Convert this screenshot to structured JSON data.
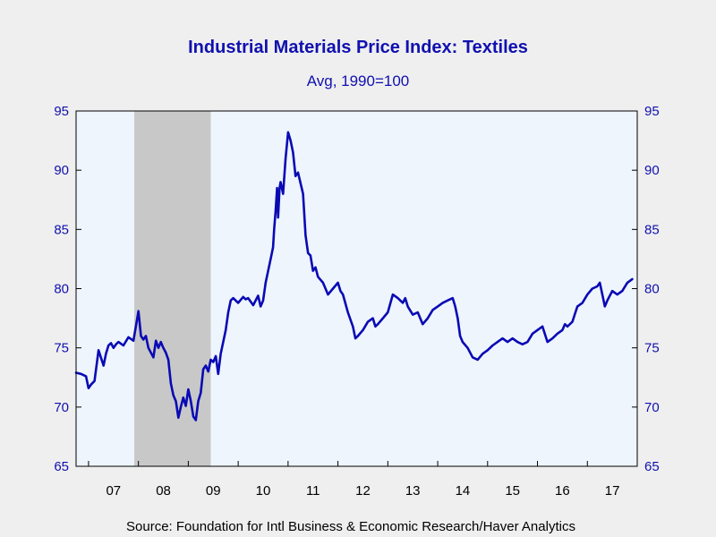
{
  "chart_data": {
    "type": "line",
    "title": "Industrial Materials Price Index: Textiles",
    "subtitle": "Avg, 1990=100",
    "source": "Source:  Foundation for Intl Business & Economic Research/Haver Analytics",
    "x_tick_labels": [
      "07",
      "08",
      "09",
      "10",
      "11",
      "12",
      "13",
      "14",
      "15",
      "16",
      "17"
    ],
    "y_tick_labels": [
      "65",
      "70",
      "75",
      "80",
      "85",
      "90",
      "95"
    ],
    "ylim": [
      65,
      95
    ],
    "xlim": [
      2006.75,
      2018.0
    ],
    "grid": false,
    "recession_shading": [
      2007.917,
      2009.45
    ],
    "colors": {
      "line": "#0a0ab4",
      "plot_bg": "#eef5fd",
      "recession": "#c8c8c8",
      "title": "#1010b0",
      "page_bg": "#efefef"
    },
    "series": [
      {
        "x": [
          2006.75,
          2006.85,
          2006.95,
          2007.0,
          2007.05,
          2007.12,
          2007.2,
          2007.3,
          2007.35,
          2007.4,
          2007.45,
          2007.5,
          2007.55,
          2007.6,
          2007.7,
          2007.8,
          2007.9,
          2008.0,
          2008.05,
          2008.1,
          2008.15,
          2008.2,
          2008.3,
          2008.35,
          2008.4,
          2008.45,
          2008.5,
          2008.55,
          2008.6,
          2008.65,
          2008.7,
          2008.75,
          2008.8,
          2008.85,
          2008.9,
          2008.95,
          2009.0,
          2009.05,
          2009.1,
          2009.15,
          2009.2,
          2009.25,
          2009.3,
          2009.35,
          2009.4,
          2009.45,
          2009.5,
          2009.55,
          2009.6,
          2009.65,
          2009.7,
          2009.75,
          2009.8,
          2009.85,
          2009.9,
          2010.0,
          2010.1,
          2010.15,
          2010.2,
          2010.3,
          2010.4,
          2010.45,
          2010.5,
          2010.55,
          2010.6,
          2010.65,
          2010.7,
          2010.72,
          2010.75,
          2010.78,
          2010.8,
          2010.83,
          2010.85,
          2010.9,
          2010.95,
          2011.0,
          2011.05,
          2011.1,
          2011.15,
          2011.2,
          2011.3,
          2011.35,
          2011.4,
          2011.45,
          2011.5,
          2011.55,
          2011.6,
          2011.7,
          2011.8,
          2011.9,
          2012.0,
          2012.05,
          2012.1,
          2012.2,
          2012.3,
          2012.35,
          2012.4,
          2012.5,
          2012.6,
          2012.7,
          2012.75,
          2012.8,
          2012.9,
          2013.0,
          2013.1,
          2013.2,
          2013.3,
          2013.35,
          2013.4,
          2013.5,
          2013.6,
          2013.7,
          2013.8,
          2013.9,
          2014.0,
          2014.1,
          2014.2,
          2014.3,
          2014.35,
          2014.4,
          2014.45,
          2014.5,
          2014.6,
          2014.7,
          2014.8,
          2014.9,
          2015.0,
          2015.1,
          2015.2,
          2015.3,
          2015.4,
          2015.5,
          2015.6,
          2015.7,
          2015.8,
          2015.9,
          2016.0,
          2016.1,
          2016.2,
          2016.3,
          2016.4,
          2016.5,
          2016.55,
          2016.6,
          2016.7,
          2016.8,
          2016.9,
          2017.0,
          2017.1,
          2017.2,
          2017.25,
          2017.3,
          2017.35,
          2017.4,
          2017.5,
          2017.6,
          2017.7,
          2017.8,
          2017.9
        ],
        "values": [
          72.9,
          72.8,
          72.6,
          71.6,
          71.9,
          72.2,
          74.8,
          73.5,
          74.5,
          75.2,
          75.4,
          75.0,
          75.3,
          75.5,
          75.2,
          75.9,
          75.6,
          78.1,
          76.0,
          75.7,
          76.0,
          75.0,
          74.2,
          75.6,
          75.0,
          75.5,
          75.0,
          74.6,
          74.0,
          72.0,
          71.0,
          70.5,
          69.1,
          70.0,
          70.8,
          70.1,
          71.5,
          70.5,
          69.2,
          68.9,
          70.5,
          71.2,
          73.2,
          73.5,
          73.0,
          74.0,
          73.8,
          74.3,
          72.8,
          74.5,
          75.5,
          76.5,
          78.0,
          79.0,
          79.2,
          78.8,
          79.3,
          79.1,
          79.2,
          78.6,
          79.4,
          78.5,
          79.0,
          80.5,
          81.5,
          82.5,
          83.5,
          85.0,
          86.5,
          88.5,
          86.0,
          88.5,
          89.0,
          88.0,
          91.0,
          93.2,
          92.5,
          91.5,
          89.5,
          89.8,
          88.0,
          84.5,
          83.0,
          82.8,
          81.5,
          81.8,
          81.0,
          80.5,
          79.5,
          80.0,
          80.5,
          79.8,
          79.5,
          78.0,
          76.8,
          75.8,
          76.0,
          76.5,
          77.2,
          77.5,
          76.8,
          77.0,
          77.5,
          78.0,
          79.5,
          79.2,
          78.8,
          79.2,
          78.5,
          77.8,
          78.0,
          77.0,
          77.5,
          78.2,
          78.5,
          78.8,
          79.0,
          79.2,
          78.5,
          77.5,
          76.0,
          75.5,
          75.0,
          74.2,
          74.0,
          74.5,
          74.8,
          75.2,
          75.5,
          75.8,
          75.5,
          75.8,
          75.5,
          75.3,
          75.5,
          76.2,
          76.5,
          76.8,
          75.5,
          75.8,
          76.2,
          76.5,
          77.0,
          76.8,
          77.2,
          78.5,
          78.8,
          79.5,
          80.0,
          80.2,
          80.5,
          79.5,
          78.5,
          79.0,
          79.8,
          79.5,
          79.8,
          80.5,
          80.8
        ]
      }
    ]
  }
}
